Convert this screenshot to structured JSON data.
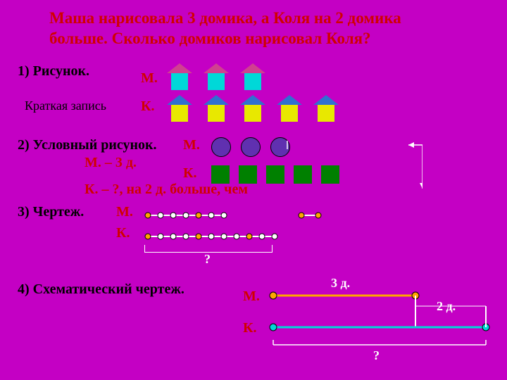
{
  "background_color": "#c400c4",
  "title": {
    "line1": "Маша нарисовала 3 домика, а Коля на 2 домика",
    "line2": "больше. Сколько домиков нарисовал Коля?",
    "color": "#d00000"
  },
  "section1": {
    "heading": "1) Рисунок.",
    "m_label": "М.",
    "k_label": "К.",
    "sub_label": "Краткая запись",
    "heading_color": "#000000",
    "label_color": "#d00000",
    "house_m": {
      "count": 3,
      "roof_color": "#d04090",
      "body_color": "#00d8d8"
    },
    "house_k": {
      "count": 5,
      "roof_color": "#3070d0",
      "body_color": "#e8e800"
    }
  },
  "section2": {
    "heading": "2) Условный рисунок.",
    "m_label": "М.",
    "k_label": "К.",
    "sub_m": "М. – 3 д.",
    "sub_k": "К. – ?, на 2 д. больше, чем",
    "heading_color": "#000000",
    "label_color": "#d00000",
    "circles": {
      "count": 3,
      "fill": "#6030b0"
    },
    "squares": {
      "count": 5,
      "fill": "#008000"
    }
  },
  "section3": {
    "heading": "3) Чертеж.",
    "m_label": "М.",
    "k_label": "К.",
    "question": "?",
    "heading_color": "#000000",
    "label_color": "#d00000",
    "line_color": "#ffffff",
    "dot_fill": "#ffa500",
    "m_segments": 3,
    "k_segments": 5,
    "extra_dots": 2
  },
  "section4": {
    "heading": "4) Схематический чертеж.",
    "m_label": "М.",
    "k_label": "К.",
    "m_len_label": "3 д.",
    "k_extra_label": "2 д.",
    "question": "?",
    "heading_color": "#000000",
    "label_color": "#d00000",
    "m_line_color": "#ffa500",
    "k_line_color": "#00d8d8",
    "vert_color": "#ffffff",
    "dot_fill": "#ffa500"
  }
}
